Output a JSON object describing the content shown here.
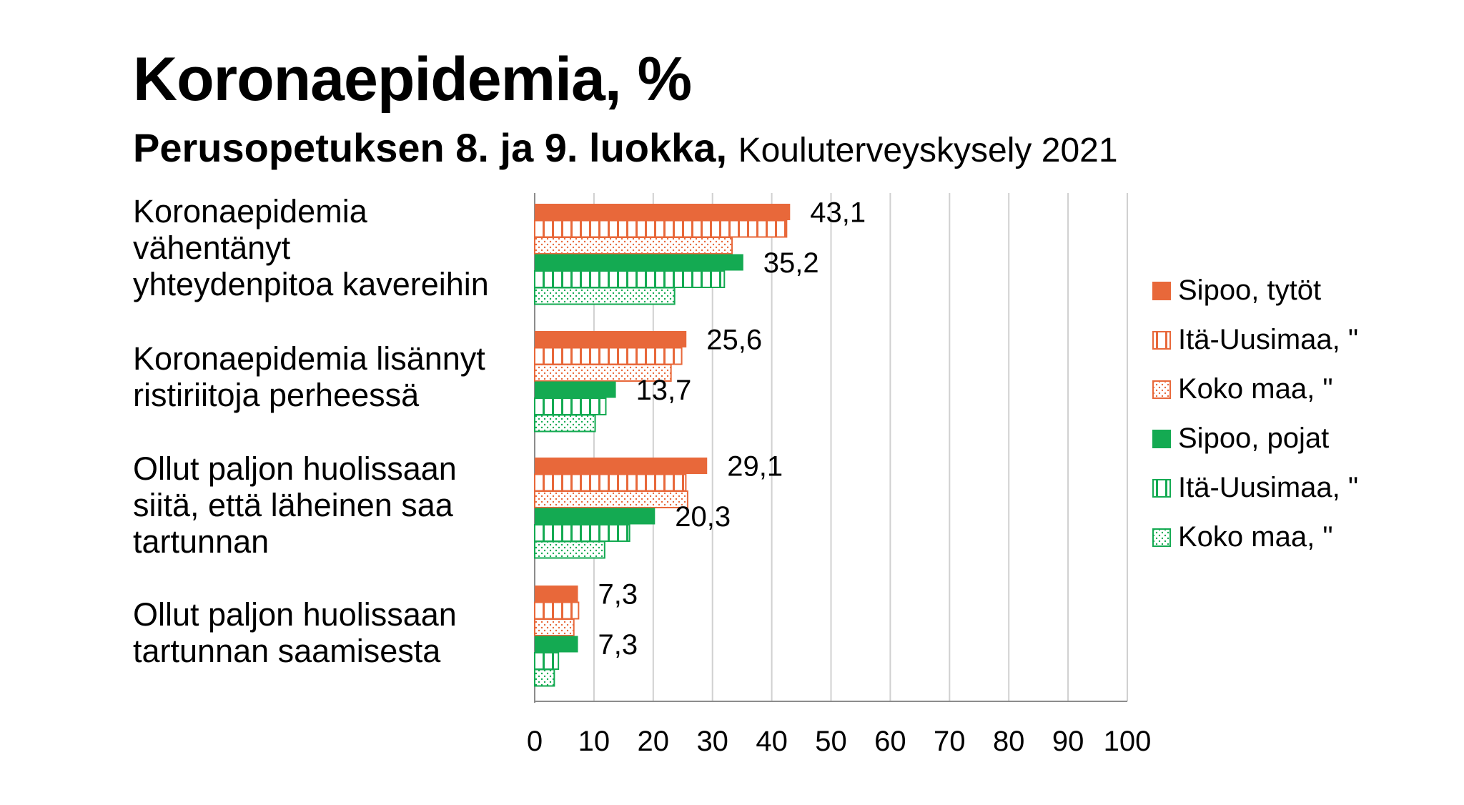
{
  "title": "Koronaepidemia, %",
  "subtitle": {
    "bold": "Perusopetuksen 8. ja 9. luokka,",
    "normal": "Kouluterveyskysely 2021"
  },
  "colors": {
    "girls": "#E8683A",
    "boys": "#14AA52",
    "grid": "#d0d0d0",
    "axis": "#8c8c8c"
  },
  "chart_data": {
    "type": "bar",
    "orientation": "horizontal",
    "categories": [
      "Koronaepidemia\nvähentänyt\nyhteydenpitoa kavereihin",
      "Koronaepidemia lisännyt\nristiriitoja perheessä",
      "Ollut paljon huolissaan\nsiitä, että läheinen saa\ntartunnan",
      "Ollut paljon huolissaan\ntartunnan saamisesta"
    ],
    "series": [
      {
        "name": "Sipoo, tytöt",
        "values": [
          43.1,
          25.6,
          29.1,
          7.3
        ],
        "labels": [
          "43,1",
          "25,6",
          "29,1",
          "7,3"
        ],
        "color": "#E8683A",
        "pattern": "solid"
      },
      {
        "name": "Itä-Uusimaa, \"",
        "values": [
          42.5,
          24.8,
          25.5,
          7.4
        ],
        "color": "#E8683A",
        "pattern": "vertical-stripes"
      },
      {
        "name": "Koko maa, \"",
        "values": [
          33.3,
          23.0,
          25.8,
          6.6
        ],
        "color": "#E8683A",
        "pattern": "dots"
      },
      {
        "name": "Sipoo, pojat",
        "values": [
          35.2,
          13.7,
          20.3,
          7.3
        ],
        "labels": [
          "35,2",
          "13,7",
          "20,3",
          "7,3"
        ],
        "color": "#14AA52",
        "pattern": "solid"
      },
      {
        "name": "Itä-Uusimaa, \"",
        "values": [
          32.0,
          12.0,
          16.0,
          4.0
        ],
        "color": "#14AA52",
        "pattern": "vertical-stripes"
      },
      {
        "name": "Koko maa, \"",
        "values": [
          23.6,
          10.2,
          11.8,
          3.3
        ],
        "color": "#14AA52",
        "pattern": "dots"
      }
    ],
    "xlim": [
      0,
      100
    ],
    "xticks": [
      "0",
      "10",
      "20",
      "30",
      "40",
      "50",
      "60",
      "70",
      "80",
      "90",
      "100"
    ],
    "grid": true,
    "legend_position": "right"
  }
}
